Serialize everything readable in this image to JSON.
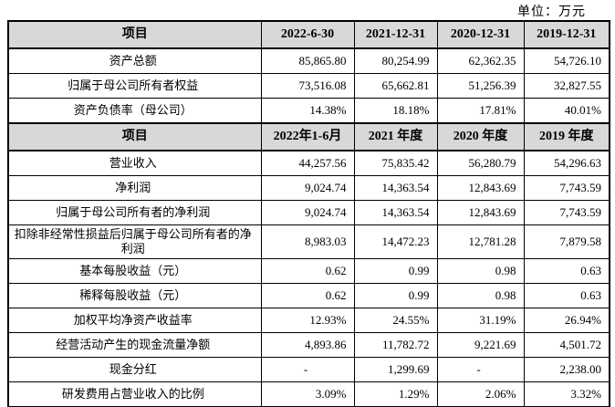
{
  "unit_label": "单位：万元",
  "colors": {
    "header_bg": "#d8d8d8",
    "border": "#000000",
    "text": "#000000",
    "page_bg": "#ffffff"
  },
  "table": {
    "sections": [
      {
        "header": [
          "项目",
          "2022-6-30",
          "2021-12-31",
          "2020-12-31",
          "2019-12-31"
        ],
        "rows": [
          [
            "资产总额",
            "85,865.80",
            "80,254.99",
            "62,362.35",
            "54,726.10"
          ],
          [
            "归属于母公司所有者权益",
            "73,516.08",
            "65,662.81",
            "51,256.39",
            "32,827.55"
          ],
          [
            "资产负债率（母公司）",
            "14.38%",
            "18.18%",
            "17.81%",
            "40.01%"
          ]
        ]
      },
      {
        "header": [
          "项目",
          "2022年1-6月",
          "2021 年度",
          "2020 年度",
          "2019 年度"
        ],
        "rows": [
          [
            "营业收入",
            "44,257.56",
            "75,835.42",
            "56,280.79",
            "54,296.63"
          ],
          [
            "净利润",
            "9,024.74",
            "14,363.54",
            "12,843.69",
            "7,743.59"
          ],
          [
            "归属于母公司所有者的净利润",
            "9,024.74",
            "14,363.54",
            "12,843.69",
            "7,743.59"
          ],
          [
            "扣除非经常性损益后归属于母公司所有者的净利润",
            "8,983.03",
            "14,472.23",
            "12,781.28",
            "7,879.58"
          ],
          [
            "基本每股收益（元）",
            "0.62",
            "0.99",
            "0.98",
            "0.63"
          ],
          [
            "稀释每股收益（元）",
            "0.62",
            "0.99",
            "0.98",
            "0.63"
          ],
          [
            "加权平均净资产收益率",
            "12.93%",
            "24.55%",
            "31.19%",
            "26.94%"
          ],
          [
            "经营活动产生的现金流量净额",
            "4,893.86",
            "11,782.72",
            "9,221.69",
            "4,501.72"
          ],
          [
            "现金分红",
            "-",
            "1,299.69",
            "-",
            "2,238.00"
          ],
          [
            "研发费用占营业收入的比例",
            "3.09%",
            "1.29%",
            "2.06%",
            "3.32%"
          ]
        ]
      }
    ]
  }
}
